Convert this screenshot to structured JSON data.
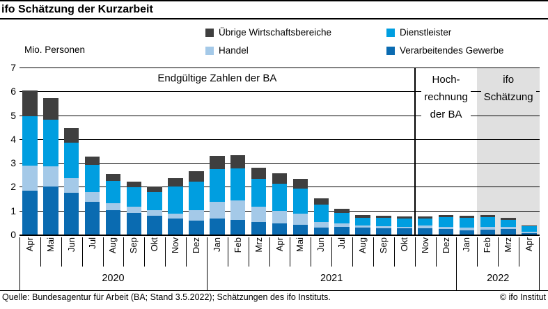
{
  "title": "ifo Schätzung der Kurzarbeit",
  "unit_label": "Mio. Personen",
  "legend": [
    {
      "label": "Übrige Wirtschaftsbereiche",
      "color": "#3f3f3f"
    },
    {
      "label": "Dienstleister",
      "color": "#009ee0"
    },
    {
      "label": "Handel",
      "color": "#a4c9e8"
    },
    {
      "label": "Verarbeitendes Gewerbe",
      "color": "#0a6bb1"
    }
  ],
  "annotations": {
    "final": "Endgültige Zahlen der BA",
    "hochrechnung_lines": [
      "Hoch-",
      "rechnung",
      "der BA"
    ],
    "ifo_lines": [
      "ifo",
      "Schätzung"
    ]
  },
  "footer": {
    "source": "Quelle: Bundesagentur für Arbeit (BA; Stand 3.5.2022); Schätzungen des ifo Instituts.",
    "copyright": "© ifo Institut"
  },
  "chart_data": {
    "type": "bar",
    "stacked": true,
    "title": "ifo Schätzung der Kurzarbeit",
    "ylabel": "Mio. Personen",
    "ylim": [
      0,
      7
    ],
    "yticks": [
      0,
      1,
      2,
      3,
      4,
      5,
      6,
      7
    ],
    "grid": true,
    "categories": [
      "Apr",
      "Mai",
      "Jun",
      "Jul",
      "Aug",
      "Sep",
      "Okt",
      "Nov",
      "Dez",
      "Jan",
      "Feb",
      "Mrz",
      "Apr",
      "Mai",
      "Jun",
      "Jul",
      "Aug",
      "Sep",
      "Okt",
      "Nov",
      "Dez",
      "Jan",
      "Feb",
      "Mrz",
      "Apr"
    ],
    "year_groups": [
      {
        "label": "2020",
        "months": 9
      },
      {
        "label": "2021",
        "months": 12
      },
      {
        "label": "2022",
        "months": 4
      }
    ],
    "stack_order": "bottom-to-top",
    "series": [
      {
        "name": "Verarbeitendes Gewerbe",
        "color": "#0a6bb1",
        "values": [
          1.85,
          2.02,
          1.75,
          1.38,
          1.01,
          0.9,
          0.79,
          0.67,
          0.57,
          0.67,
          0.62,
          0.54,
          0.47,
          0.4,
          0.3,
          0.32,
          0.28,
          0.27,
          0.25,
          0.26,
          0.23,
          0.19,
          0.2,
          0.22,
          0.06
        ]
      },
      {
        "name": "Handel",
        "color": "#a4c9e8",
        "values": [
          1.05,
          0.85,
          0.62,
          0.4,
          0.31,
          0.27,
          0.24,
          0.21,
          0.46,
          0.71,
          0.8,
          0.63,
          0.51,
          0.47,
          0.24,
          0.16,
          0.1,
          0.08,
          0.07,
          0.11,
          0.1,
          0.1,
          0.11,
          0.09,
          0.07
        ]
      },
      {
        "name": "Dienstleister",
        "color": "#009ee0",
        "values": [
          2.05,
          1.95,
          1.48,
          1.15,
          0.93,
          0.8,
          0.74,
          1.12,
          1.19,
          1.35,
          1.34,
          1.17,
          1.14,
          1.06,
          0.71,
          0.43,
          0.33,
          0.36,
          0.35,
          0.3,
          0.41,
          0.42,
          0.41,
          0.31,
          0.21
        ]
      },
      {
        "name": "Übrige Wirtschaftsbereiche",
        "color": "#3f3f3f",
        "values": [
          1.1,
          0.9,
          0.6,
          0.35,
          0.29,
          0.26,
          0.24,
          0.37,
          0.44,
          0.56,
          0.58,
          0.47,
          0.44,
          0.39,
          0.27,
          0.17,
          0.11,
          0.09,
          0.08,
          0.09,
          0.08,
          0.09,
          0.11,
          0.09,
          0.04
        ]
      }
    ],
    "sections": [
      {
        "label": "Endgültige Zahlen der BA",
        "start_index": 0,
        "end_index": 18,
        "shaded": false
      },
      {
        "label": "Hochrechnung der BA",
        "start_index": 19,
        "end_index": 21,
        "shaded": false
      },
      {
        "label": "ifo Schätzung",
        "start_index": 22,
        "end_index": 24,
        "shaded": true
      }
    ],
    "shaded_region_color": "#e0e0e0",
    "legend_position": "top"
  }
}
